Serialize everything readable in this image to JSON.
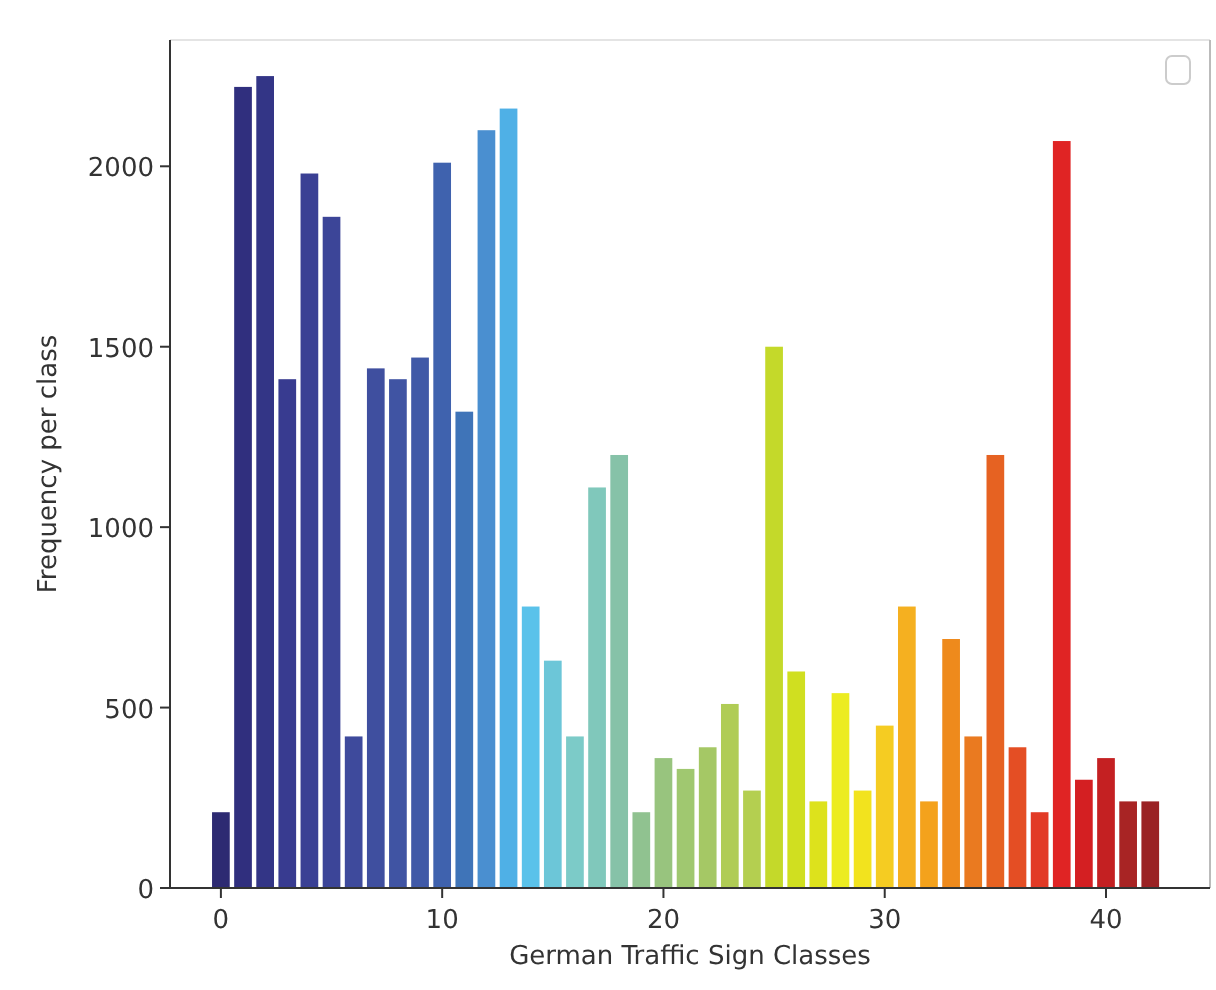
{
  "chart_data": {
    "type": "bar",
    "xlabel": "German Traffic Sign Classes",
    "ylabel": "Frequency per class",
    "x": [
      0,
      1,
      2,
      3,
      4,
      5,
      6,
      7,
      8,
      9,
      10,
      11,
      12,
      13,
      14,
      15,
      16,
      17,
      18,
      19,
      20,
      21,
      22,
      23,
      24,
      25,
      26,
      27,
      28,
      29,
      30,
      31,
      32,
      33,
      34,
      35,
      36,
      37,
      38,
      39,
      40,
      41,
      42
    ],
    "values": [
      210,
      2220,
      2250,
      1410,
      1980,
      1860,
      420,
      1440,
      1410,
      1470,
      2010,
      1320,
      2100,
      2160,
      780,
      630,
      420,
      1110,
      1200,
      210,
      360,
      330,
      390,
      510,
      270,
      1500,
      600,
      240,
      540,
      270,
      450,
      780,
      240,
      690,
      420,
      1200,
      390,
      210,
      2070,
      300,
      360,
      240,
      240
    ],
    "colors": [
      "#2d2a72",
      "#302f7e",
      "#333586",
      "#383b90",
      "#3a4094",
      "#3c4598",
      "#3e4a9c",
      "#3f4f9f",
      "#4054a3",
      "#4059a7",
      "#3f62ae",
      "#3f74b8",
      "#4a8fd0",
      "#4fb0e6",
      "#5ac2ea",
      "#6cc6d8",
      "#7ccbc8",
      "#80c8bb",
      "#86c2a8",
      "#90c290",
      "#98c47e",
      "#a0c870",
      "#a5c865",
      "#b0cc55",
      "#b4cf50",
      "#c4d92a",
      "#d0df20",
      "#dde21c",
      "#ecec20",
      "#f2e31e",
      "#f5cc22",
      "#f5b020",
      "#f4a21c",
      "#ee8a1c",
      "#ea7a20",
      "#e66222",
      "#e44e24",
      "#e23a26",
      "#e02424",
      "#d41f22",
      "#c42022",
      "#a82424",
      "#9a2224"
    ],
    "xlim": [
      -2.3,
      44.7
    ],
    "xticks": [
      0,
      10,
      20,
      30,
      40
    ],
    "ylim": [
      0,
      2350
    ],
    "yticks": [
      0,
      500,
      1000,
      1500,
      2000
    ],
    "grid": false
  }
}
